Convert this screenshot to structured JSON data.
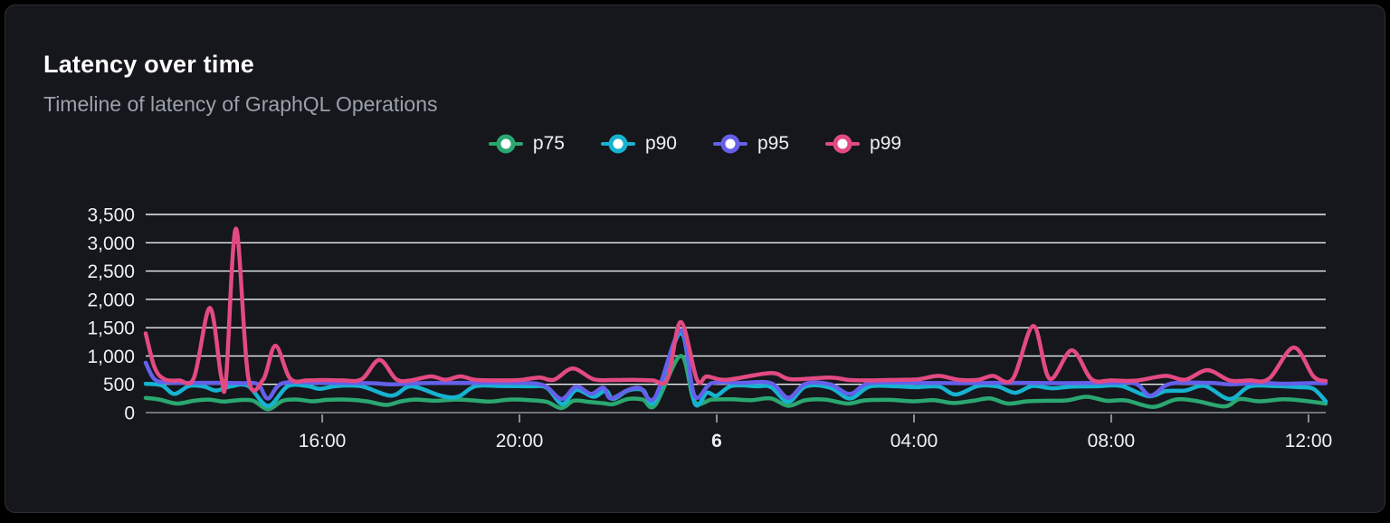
{
  "header": {
    "title": "Latency over time",
    "subtitle": "Timeline of latency of GraphQL Operations"
  },
  "colors": {
    "page_background": "#000000",
    "card_background": "#15171c",
    "card_border": "#2c2f36",
    "grid_line": "#eceff1",
    "zero_axis_line": "#70747b",
    "x_tick_mark": "#8a8e95",
    "tick_text": "#eef0f2",
    "title_text": "#ffffff",
    "subtitle_text": "#9ba1ab"
  },
  "chart_data": {
    "type": "line",
    "title": "Latency over time",
    "subtitle": "Timeline of latency of GraphQL Operations",
    "xlabel": "",
    "ylabel": "",
    "grid": true,
    "legend_position": "top-center",
    "x_axis": {
      "unit": "hours-since-12:00-day-5",
      "domain": [
        0.42,
        24.35
      ],
      "ticks": [
        {
          "hour": 4,
          "label": "16:00",
          "bold": false
        },
        {
          "hour": 8,
          "label": "20:00",
          "bold": false
        },
        {
          "hour": 12,
          "label": "6",
          "bold": true
        },
        {
          "hour": 16,
          "label": "04:00",
          "bold": false
        },
        {
          "hour": 20,
          "label": "08:00",
          "bold": false
        },
        {
          "hour": 24,
          "label": "12:00",
          "bold": false
        }
      ]
    },
    "y_axis": {
      "min": 0,
      "max": 3500,
      "ticks": [
        {
          "value": 0,
          "label": "0"
        },
        {
          "value": 500,
          "label": "500"
        },
        {
          "value": 1000,
          "label": "1,000"
        },
        {
          "value": 1500,
          "label": "1,500"
        },
        {
          "value": 2000,
          "label": "2,000"
        },
        {
          "value": 2500,
          "label": "2,500"
        },
        {
          "value": 3000,
          "label": "3,000"
        },
        {
          "value": 3500,
          "label": "3,500"
        }
      ]
    },
    "series": [
      {
        "name": "p75",
        "color": "#2ba770",
        "points": [
          [
            0.42,
            260
          ],
          [
            0.7,
            230
          ],
          [
            1.05,
            160
          ],
          [
            1.4,
            210
          ],
          [
            1.7,
            230
          ],
          [
            2.0,
            195
          ],
          [
            2.3,
            220
          ],
          [
            2.6,
            210
          ],
          [
            2.9,
            60
          ],
          [
            3.2,
            210
          ],
          [
            3.5,
            230
          ],
          [
            3.8,
            200
          ],
          [
            4.1,
            225
          ],
          [
            4.5,
            230
          ],
          [
            4.9,
            200
          ],
          [
            5.3,
            135
          ],
          [
            5.6,
            200
          ],
          [
            5.9,
            230
          ],
          [
            6.3,
            210
          ],
          [
            6.7,
            230
          ],
          [
            7.0,
            220
          ],
          [
            7.4,
            195
          ],
          [
            7.8,
            230
          ],
          [
            8.2,
            220
          ],
          [
            8.55,
            190
          ],
          [
            8.85,
            80
          ],
          [
            9.1,
            210
          ],
          [
            9.4,
            190
          ],
          [
            9.7,
            165
          ],
          [
            9.9,
            150
          ],
          [
            10.2,
            240
          ],
          [
            10.5,
            230
          ],
          [
            10.75,
            130
          ],
          [
            11.27,
            1000
          ],
          [
            11.55,
            200
          ],
          [
            11.9,
            230
          ],
          [
            12.3,
            235
          ],
          [
            12.7,
            220
          ],
          [
            13.1,
            250
          ],
          [
            13.45,
            120
          ],
          [
            13.8,
            220
          ],
          [
            14.2,
            230
          ],
          [
            14.66,
            160
          ],
          [
            15.0,
            215
          ],
          [
            15.5,
            225
          ],
          [
            16.0,
            200
          ],
          [
            16.4,
            220
          ],
          [
            16.8,
            170
          ],
          [
            17.2,
            210
          ],
          [
            17.55,
            250
          ],
          [
            17.9,
            160
          ],
          [
            18.3,
            200
          ],
          [
            18.7,
            210
          ],
          [
            19.1,
            215
          ],
          [
            19.5,
            280
          ],
          [
            19.9,
            210
          ],
          [
            20.3,
            215
          ],
          [
            20.85,
            100
          ],
          [
            21.3,
            230
          ],
          [
            21.7,
            210
          ],
          [
            22.3,
            110
          ],
          [
            22.6,
            240
          ],
          [
            23.0,
            200
          ],
          [
            23.5,
            235
          ],
          [
            23.9,
            210
          ],
          [
            24.35,
            160
          ]
        ]
      },
      {
        "name": "p90",
        "color": "#16b3d0",
        "points": [
          [
            0.42,
            510
          ],
          [
            0.75,
            480
          ],
          [
            1.0,
            330
          ],
          [
            1.3,
            470
          ],
          [
            1.6,
            460
          ],
          [
            1.85,
            390
          ],
          [
            2.15,
            465
          ],
          [
            2.5,
            470
          ],
          [
            2.9,
            120
          ],
          [
            3.3,
            465
          ],
          [
            3.7,
            470
          ],
          [
            3.95,
            420
          ],
          [
            4.3,
            470
          ],
          [
            4.8,
            465
          ],
          [
            5.4,
            300
          ],
          [
            5.8,
            465
          ],
          [
            6.4,
            300
          ],
          [
            6.75,
            280
          ],
          [
            7.1,
            465
          ],
          [
            7.6,
            470
          ],
          [
            8.2,
            465
          ],
          [
            8.55,
            440
          ],
          [
            8.87,
            150
          ],
          [
            9.15,
            400
          ],
          [
            9.5,
            280
          ],
          [
            9.75,
            390
          ],
          [
            9.9,
            240
          ],
          [
            10.2,
            390
          ],
          [
            10.5,
            400
          ],
          [
            10.75,
            200
          ],
          [
            11.27,
            1400
          ],
          [
            11.55,
            170
          ],
          [
            11.8,
            350
          ],
          [
            12.0,
            300
          ],
          [
            12.3,
            470
          ],
          [
            12.8,
            465
          ],
          [
            13.1,
            450
          ],
          [
            13.45,
            190
          ],
          [
            13.8,
            460
          ],
          [
            14.3,
            440
          ],
          [
            14.7,
            250
          ],
          [
            15.1,
            460
          ],
          [
            15.6,
            465
          ],
          [
            16.05,
            450
          ],
          [
            16.5,
            460
          ],
          [
            16.85,
            320
          ],
          [
            17.3,
            470
          ],
          [
            17.7,
            460
          ],
          [
            18.05,
            350
          ],
          [
            18.4,
            470
          ],
          [
            18.8,
            430
          ],
          [
            19.2,
            460
          ],
          [
            19.7,
            465
          ],
          [
            20.2,
            470
          ],
          [
            20.75,
            290
          ],
          [
            21.1,
            380
          ],
          [
            21.5,
            390
          ],
          [
            21.9,
            470
          ],
          [
            22.4,
            240
          ],
          [
            22.8,
            460
          ],
          [
            23.3,
            470
          ],
          [
            23.8,
            450
          ],
          [
            24.1,
            420
          ],
          [
            24.35,
            200
          ]
        ]
      },
      {
        "name": "p95",
        "color": "#6460ea",
        "points": [
          [
            0.42,
            880
          ],
          [
            0.6,
            590
          ],
          [
            0.9,
            530
          ],
          [
            1.5,
            525
          ],
          [
            2.0,
            525
          ],
          [
            2.4,
            520
          ],
          [
            2.7,
            500
          ],
          [
            2.9,
            250
          ],
          [
            3.2,
            520
          ],
          [
            4.0,
            525
          ],
          [
            5.0,
            520
          ],
          [
            5.4,
            500
          ],
          [
            6.0,
            520
          ],
          [
            7.0,
            525
          ],
          [
            8.0,
            525
          ],
          [
            8.5,
            480
          ],
          [
            8.85,
            240
          ],
          [
            9.15,
            460
          ],
          [
            9.45,
            330
          ],
          [
            9.7,
            440
          ],
          [
            9.85,
            250
          ],
          [
            10.2,
            400
          ],
          [
            10.45,
            430
          ],
          [
            10.75,
            270
          ],
          [
            11.27,
            1450
          ],
          [
            11.55,
            300
          ],
          [
            11.9,
            520
          ],
          [
            12.5,
            525
          ],
          [
            13.1,
            520
          ],
          [
            13.45,
            260
          ],
          [
            13.8,
            510
          ],
          [
            14.3,
            500
          ],
          [
            14.7,
            330
          ],
          [
            15.1,
            520
          ],
          [
            16.0,
            525
          ],
          [
            17.0,
            520
          ],
          [
            18.0,
            525
          ],
          [
            19.0,
            520
          ],
          [
            20.0,
            525
          ],
          [
            20.5,
            510
          ],
          [
            20.8,
            300
          ],
          [
            21.2,
            510
          ],
          [
            22.0,
            525
          ],
          [
            22.4,
            500
          ],
          [
            23.0,
            525
          ],
          [
            23.5,
            510
          ],
          [
            24.0,
            520
          ],
          [
            24.35,
            520
          ]
        ]
      },
      {
        "name": "p99",
        "color": "#e34a82",
        "points": [
          [
            0.42,
            1400
          ],
          [
            0.6,
            800
          ],
          [
            0.8,
            590
          ],
          [
            1.1,
            570
          ],
          [
            1.4,
            620
          ],
          [
            1.72,
            1850
          ],
          [
            1.95,
            640
          ],
          [
            2.05,
            600
          ],
          [
            2.25,
            3250
          ],
          [
            2.5,
            620
          ],
          [
            2.8,
            580
          ],
          [
            3.05,
            1180
          ],
          [
            3.35,
            600
          ],
          [
            3.7,
            570
          ],
          [
            4.0,
            575
          ],
          [
            4.4,
            570
          ],
          [
            4.8,
            590
          ],
          [
            5.16,
            930
          ],
          [
            5.5,
            590
          ],
          [
            5.8,
            570
          ],
          [
            6.2,
            640
          ],
          [
            6.5,
            580
          ],
          [
            6.8,
            640
          ],
          [
            7.1,
            580
          ],
          [
            7.5,
            570
          ],
          [
            8.0,
            575
          ],
          [
            8.4,
            620
          ],
          [
            8.7,
            580
          ],
          [
            9.08,
            780
          ],
          [
            9.5,
            590
          ],
          [
            9.9,
            575
          ],
          [
            10.3,
            580
          ],
          [
            10.7,
            570
          ],
          [
            11.0,
            590
          ],
          [
            11.27,
            1600
          ],
          [
            11.6,
            580
          ],
          [
            11.8,
            640
          ],
          [
            12.2,
            580
          ],
          [
            13.1,
            700
          ],
          [
            13.5,
            590
          ],
          [
            14.3,
            620
          ],
          [
            14.7,
            575
          ],
          [
            15.2,
            570
          ],
          [
            15.7,
            580
          ],
          [
            16.1,
            590
          ],
          [
            16.5,
            650
          ],
          [
            16.9,
            580
          ],
          [
            17.3,
            580
          ],
          [
            17.6,
            650
          ],
          [
            18.0,
            590
          ],
          [
            18.42,
            1530
          ],
          [
            18.75,
            600
          ],
          [
            19.2,
            1100
          ],
          [
            19.6,
            590
          ],
          [
            20.0,
            570
          ],
          [
            20.5,
            565
          ],
          [
            21.1,
            650
          ],
          [
            21.5,
            580
          ],
          [
            21.95,
            750
          ],
          [
            22.4,
            570
          ],
          [
            22.8,
            570
          ],
          [
            23.2,
            600
          ],
          [
            23.7,
            1150
          ],
          [
            24.1,
            640
          ],
          [
            24.35,
            560
          ]
        ]
      }
    ]
  }
}
